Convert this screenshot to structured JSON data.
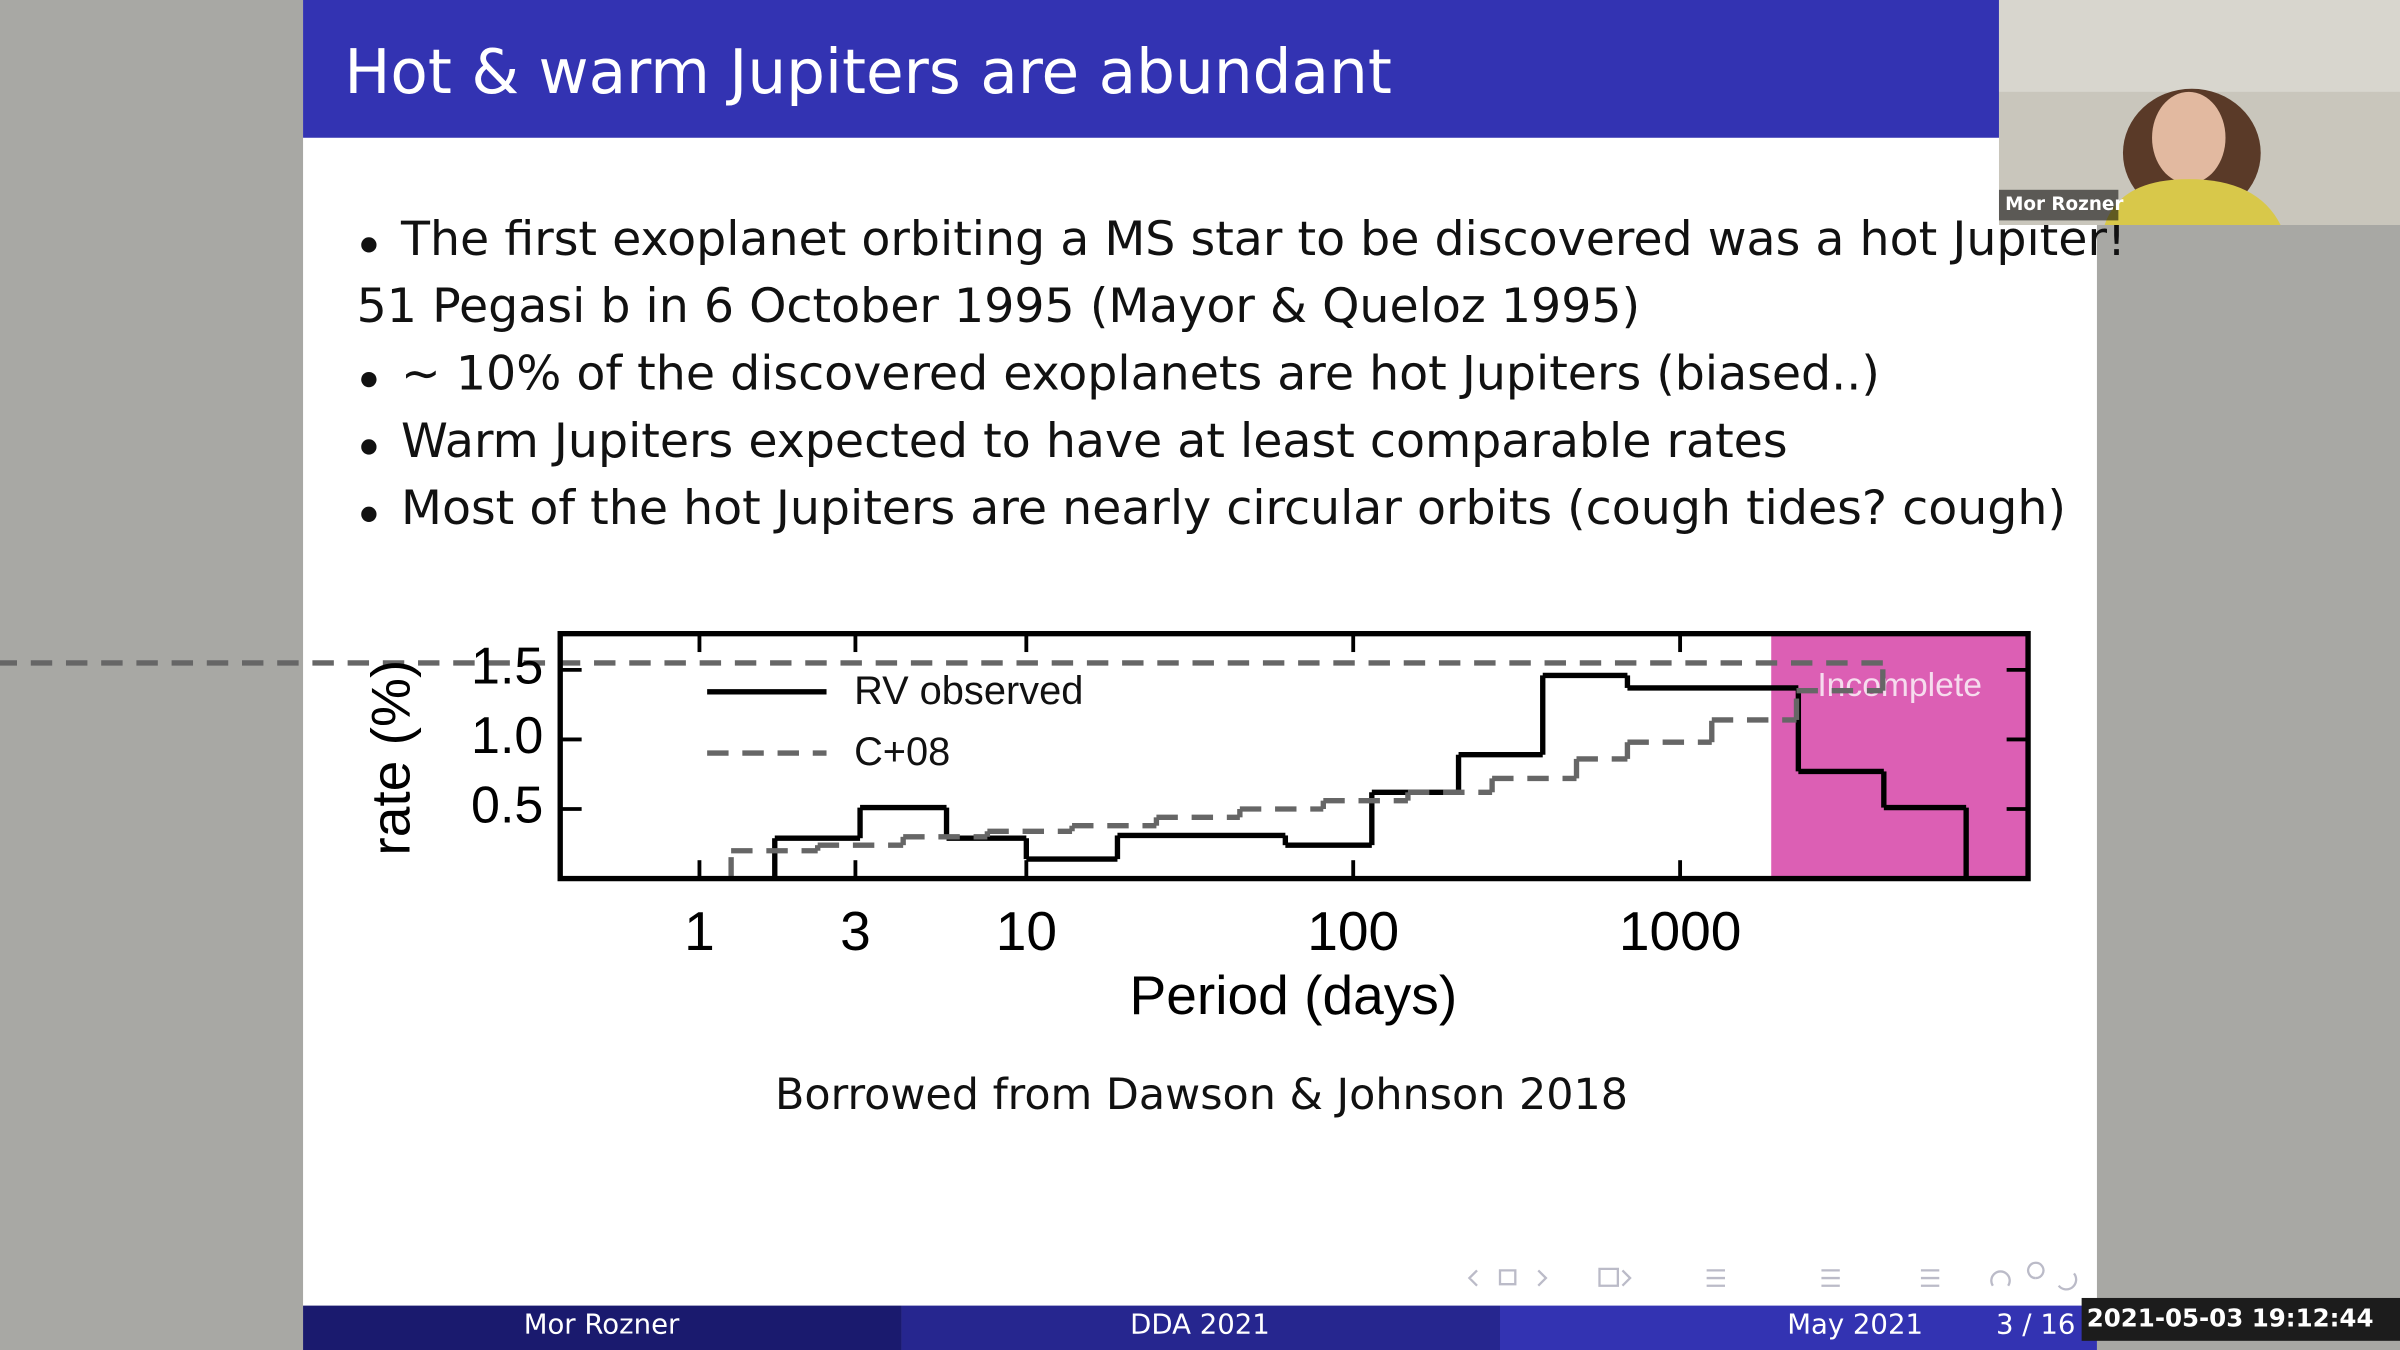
{
  "slide": {
    "title": "Hot & warm Jupiters are abundant",
    "lines": [
      {
        "text": "The first exoplanet orbiting a MS star to be discovered was a hot Jupiter!",
        "bullet": true
      },
      {
        "text": "51 Pegasi b in 6 October 1995 (Mayor & Queloz 1995)",
        "bullet": false
      },
      {
        "text": "∼ 10% of the discovered exoplanets are hot Jupiters (biased..)",
        "bullet": true
      },
      {
        "text": "Warm Jupiters expected to have at least comparable rates",
        "bullet": true
      },
      {
        "text": "Most of the hot Jupiters are nearly circular orbits (cough tides? cough)",
        "bullet": true
      }
    ],
    "caption": "Borrowed from Dawson & Johnson 2018"
  },
  "chart_data": {
    "type": "step",
    "x_label": "Period (days)",
    "y_label": "rate (%)",
    "log_x": true,
    "xlim": [
      0.375,
      11600
    ],
    "xticks": [
      1,
      3,
      10,
      100,
      1000
    ],
    "ylim": [
      0,
      1.76
    ],
    "yticks": [
      0.5,
      {
        "value": 1,
        "label": "1.0"
      },
      1.5
    ],
    "shade": {
      "from": 1900,
      "label": "Incomplete",
      "color": "#dc5fb4"
    },
    "series": [
      {
        "name": "RV observed",
        "color": "#000000",
        "dashed": false,
        "bins": [
          1.7,
          3.1,
          5.7,
          10,
          19,
          62,
          114,
          210,
          380,
          690,
          2300,
          4200,
          7500
        ],
        "values": [
          0.29,
          0.51,
          0.29,
          0.14,
          0.31,
          0.24,
          0.62,
          0.89,
          1.46,
          1.37,
          0.77,
          0.51
        ]
      },
      {
        "name": "C+08",
        "color": "#666666",
        "dashed": true,
        "bins": [
          1.25,
          2.3,
          4.2,
          7.6,
          13.8,
          25,
          45,
          81,
          147,
          266,
          482,
          690,
          1250,
          2270,
          4170
        ],
        "values": [
          0.2,
          0.24,
          0.3,
          0.34,
          0.38,
          0.44,
          0.5,
          0.56,
          0.62,
          0.72,
          0.86,
          0.98,
          1.14,
          1.35,
          1.55
        ]
      }
    ]
  },
  "footer": {
    "author": "Mor Rozner",
    "event": "DDA 2021",
    "date": "May  2021",
    "page": "3 / 16"
  },
  "video": {
    "name": "Mor Rozner"
  },
  "timestamp": "2021-05-03 19:12:44"
}
